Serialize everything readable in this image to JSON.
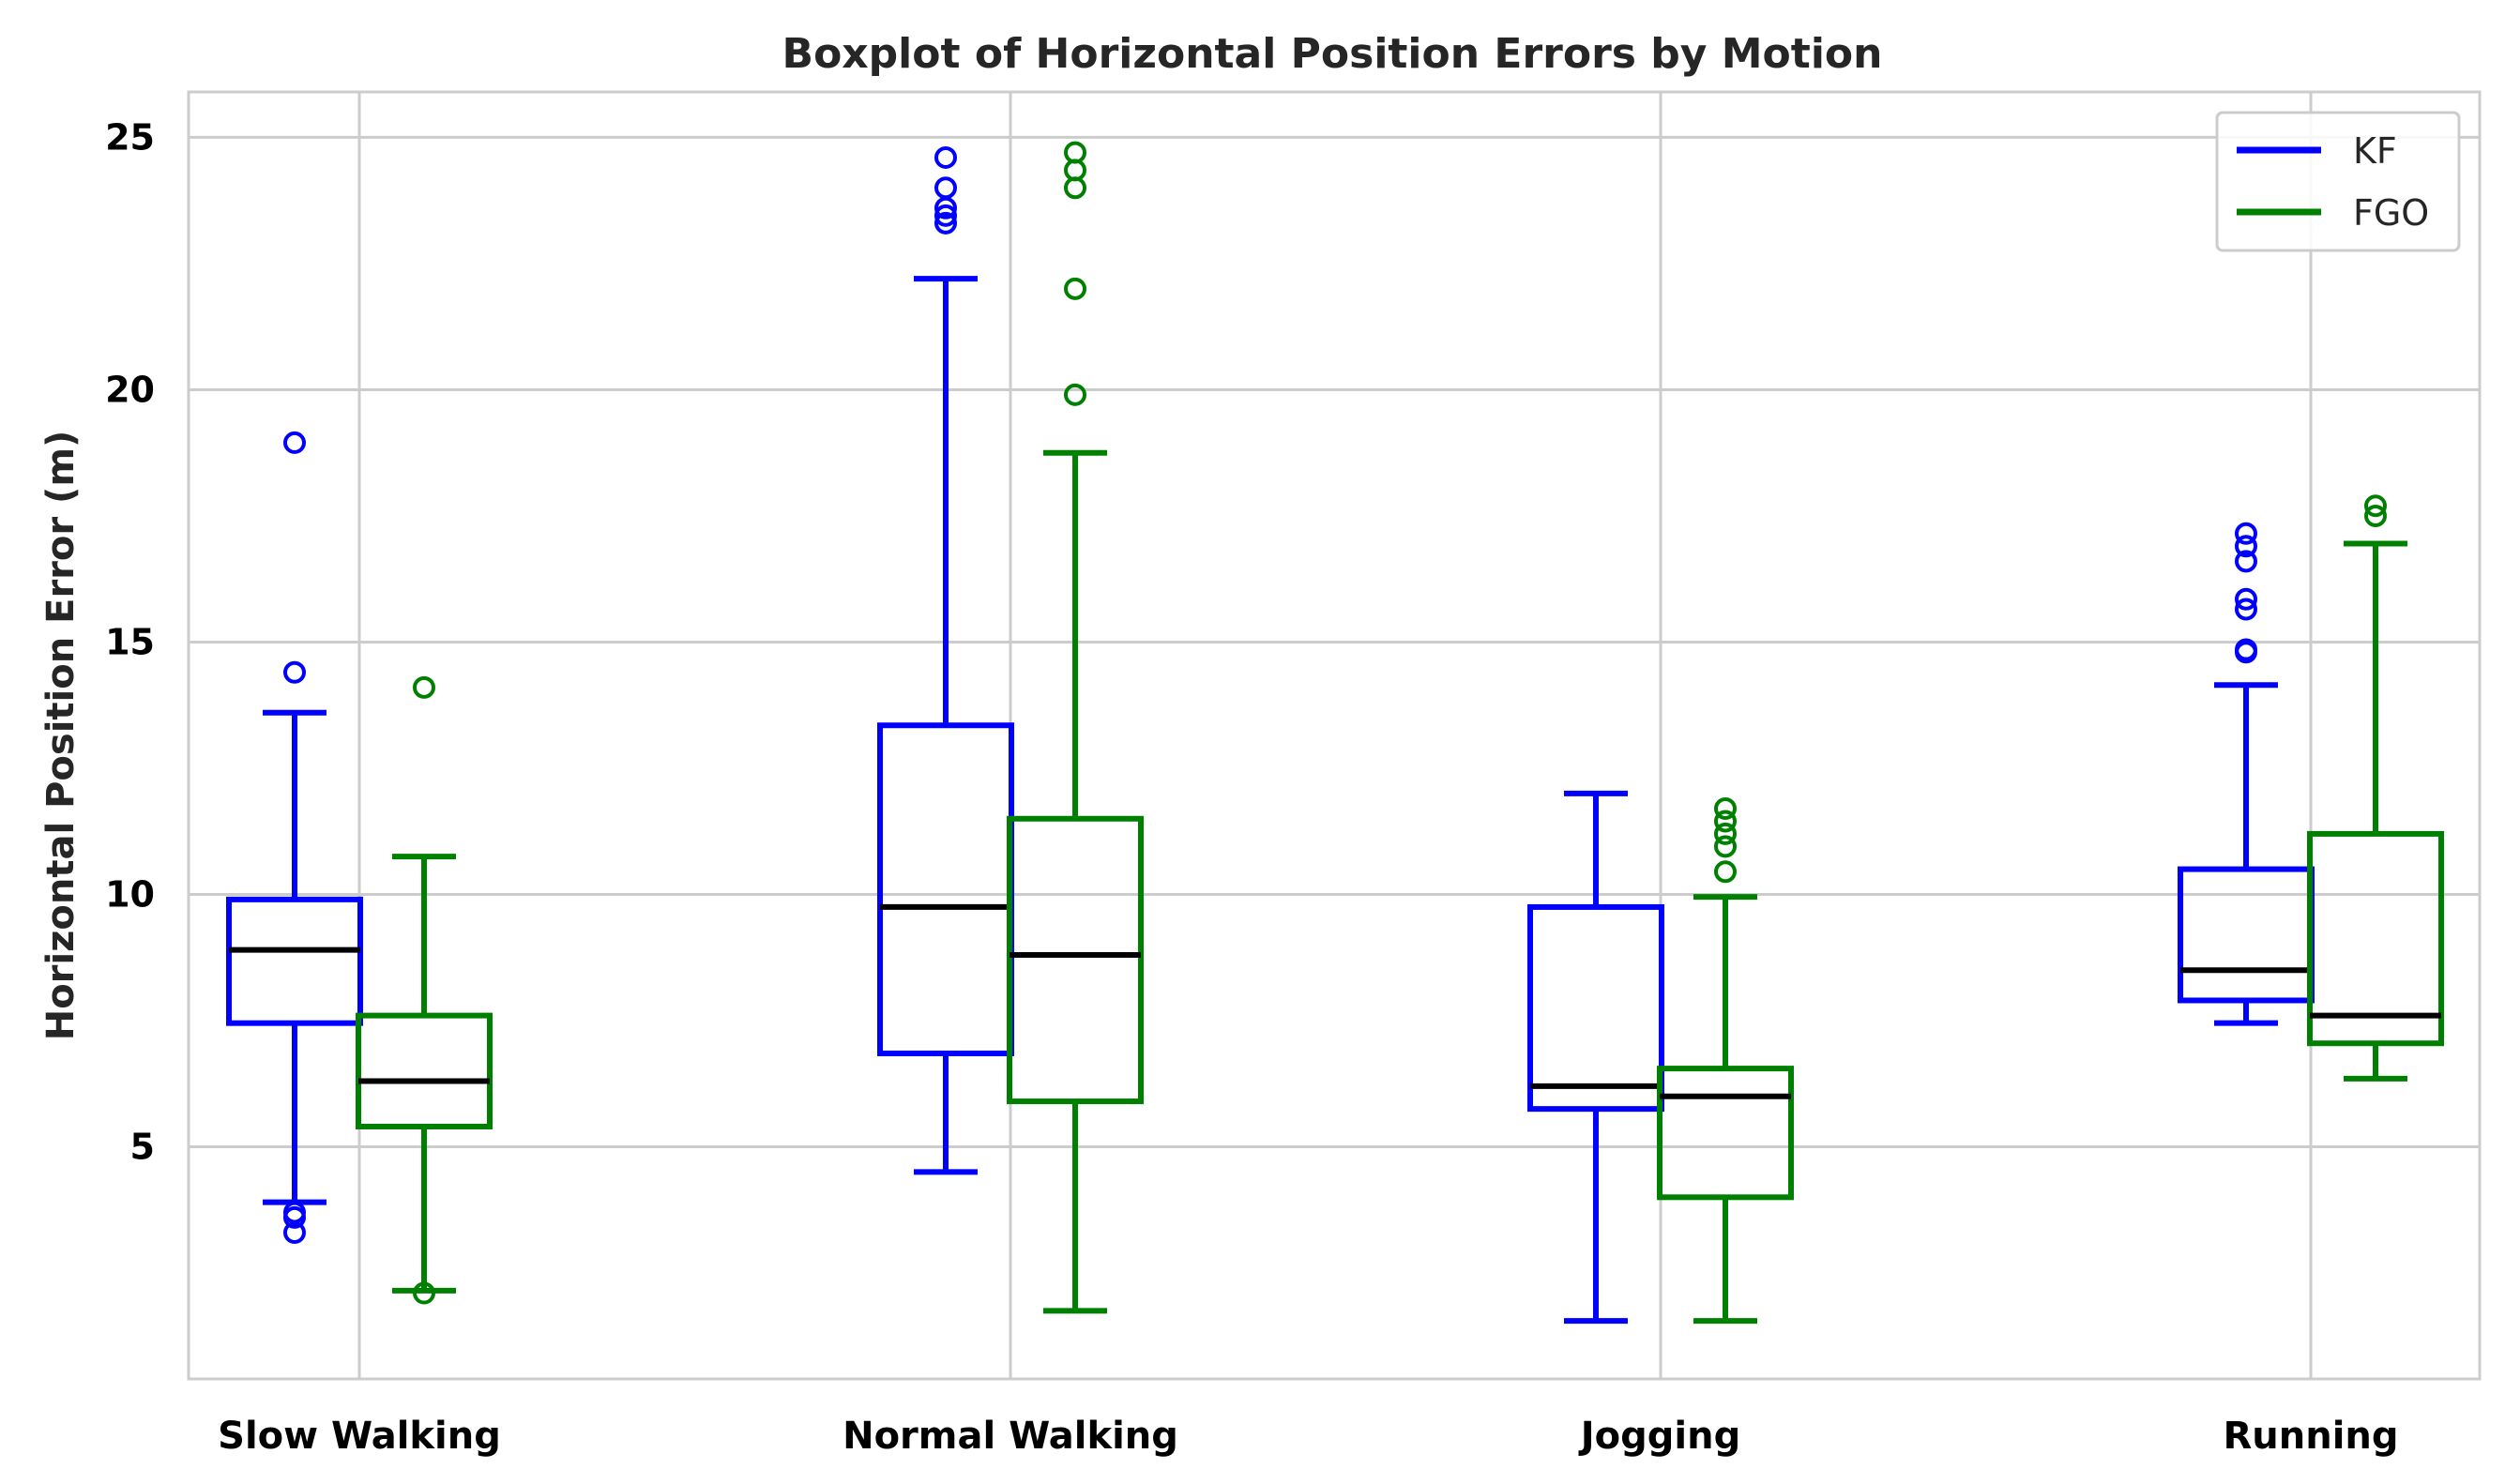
{
  "chart_data": {
    "type": "boxplot",
    "title": "Boxplot of Horizontal Position Errors by Motion",
    "xlabel": "",
    "ylabel": "Horizontal Position Error (m)",
    "ylim": [
      0.4,
      25.9
    ],
    "yticks": [
      5,
      10,
      15,
      20,
      25
    ],
    "categories": [
      "Slow Walking",
      "Normal Walking",
      "Jogging",
      "Running"
    ],
    "grid": true,
    "legend_position": "top-right",
    "median_color": "#000000",
    "series": [
      {
        "name": "KF",
        "color": "#0000ff",
        "boxes": [
          {
            "whislo": 3.9,
            "q1": 7.45,
            "med": 8.9,
            "q3": 9.9,
            "whishi": 13.6,
            "fliers": [
              3.3,
              3.6,
              3.7,
              14.4,
              18.95
            ]
          },
          {
            "whislo": 4.5,
            "q1": 6.85,
            "med": 9.75,
            "q3": 13.35,
            "whishi": 22.2,
            "fliers": [
              23.3,
              23.45,
              23.6,
              24.0,
              24.6
            ]
          },
          {
            "whislo": 1.55,
            "q1": 5.75,
            "med": 6.2,
            "q3": 9.75,
            "whishi": 12.0,
            "fliers": []
          },
          {
            "whislo": 7.45,
            "q1": 7.9,
            "med": 8.5,
            "q3": 10.5,
            "whishi": 14.15,
            "fliers": [
              14.8,
              14.85,
              15.65,
              15.85,
              16.6,
              16.9,
              17.15
            ]
          }
        ]
      },
      {
        "name": "FGO",
        "color": "#008000",
        "boxes": [
          {
            "whislo": 2.15,
            "q1": 5.4,
            "med": 6.3,
            "q3": 7.6,
            "whishi": 10.75,
            "fliers": [
              2.1,
              14.1
            ]
          },
          {
            "whislo": 1.75,
            "q1": 5.9,
            "med": 8.8,
            "q3": 11.5,
            "whishi": 18.75,
            "fliers": [
              19.9,
              22.0,
              24.0,
              24.35,
              24.7
            ]
          },
          {
            "whislo": 1.55,
            "q1": 4.0,
            "med": 6.0,
            "q3": 6.55,
            "whishi": 9.95,
            "fliers": [
              10.45,
              10.95,
              11.2,
              11.45,
              11.7
            ]
          },
          {
            "whislo": 6.35,
            "q1": 7.05,
            "med": 7.6,
            "q3": 11.2,
            "whishi": 16.95,
            "fliers": [
              17.5,
              17.7
            ]
          }
        ]
      }
    ]
  }
}
